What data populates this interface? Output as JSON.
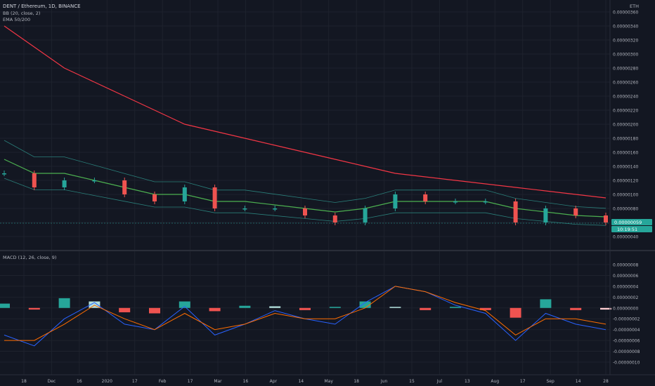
{
  "header": {
    "symbol": "DENT / Ethereum, 1D, BINANCE",
    "indicator_bb": "BB (20, close, 2)",
    "indicator_ema": "EMA 50/200",
    "currency": "ETH",
    "macd_label": "MACD (12, 26, close, 9)"
  },
  "price_badge": {
    "value": "0.00000059",
    "countdown": "10:19:51"
  },
  "colors": {
    "background": "#131722",
    "grid": "#1e222d",
    "up": "#26a69a",
    "down": "#ef5350",
    "ema50": "#4caf50",
    "ema200": "#f23645",
    "bb_band": "#2a7f7a",
    "bb_basis": "#c2185b",
    "macd_line": "#2962ff",
    "signal_line": "#ff6d00",
    "hist_up_strong": "#26a69a",
    "hist_up_weak": "#b2dfdb",
    "hist_down_strong": "#ef5350",
    "hist_down_weak": "#ffcdd2",
    "badge": "#26a69a"
  },
  "time_axis": [
    "18",
    "Dec",
    "16",
    "2020",
    "17",
    "Feb",
    "17",
    "Mar",
    "16",
    "Apr",
    "14",
    "May",
    "18",
    "Jun",
    "15",
    "Jul",
    "13",
    "Aug",
    "17",
    "Sep",
    "14",
    "28"
  ],
  "chart_data": [
    {
      "type": "line",
      "title": "",
      "y_ticks": [
        "0.00000360",
        "0.00000340",
        "0.00000320",
        "0.00000300",
        "0.00000280",
        "0.00000260",
        "0.00000240",
        "0.00000220",
        "0.00000200",
        "0.00000180",
        "0.00000160",
        "0.00000140",
        "0.00000120",
        "0.00000100",
        "0.00000080",
        "0.00000060",
        "0.00000040"
      ],
      "ylim": [
        4e-07,
        3.6e-06
      ],
      "x": [
        "18",
        "Dec",
        "16",
        "2020",
        "17",
        "Feb",
        "17",
        "Mar",
        "16",
        "Apr",
        "14",
        "May",
        "18",
        "Jun",
        "15",
        "Jul",
        "13",
        "Aug",
        "17",
        "Sep",
        "14"
      ],
      "close": [
        1.3e-06,
        1.1e-06,
        1.2e-06,
        1.2e-06,
        1e-06,
        9e-07,
        1.1e-06,
        8e-07,
        8e-07,
        8e-07,
        7e-07,
        6e-07,
        8e-07,
        1e-06,
        9e-07,
        9e-07,
        9e-07,
        6e-07,
        8e-07,
        7e-07,
        6e-07
      ],
      "series": [
        {
          "values": [
            1.5e-06,
            1.3e-06,
            1.3e-06,
            1.2e-06,
            1.1e-06,
            1e-06,
            1e-06,
            9e-07,
            9e-07,
            8.5e-07,
            8e-07,
            7.5e-07,
            8e-07,
            9e-07,
            9e-07,
            9e-07,
            9e-07,
            8e-07,
            7.5e-07,
            7e-07,
            6.8e-07
          ]
        },
        {
          "values": [
            3.4e-06,
            3.1e-06,
            2.8e-06,
            2.6e-06,
            2.4e-06,
            2.2e-06,
            2e-06,
            1.9e-06,
            1.8e-06,
            1.7e-06,
            1.6e-06,
            1.5e-06,
            1.4e-06,
            1.3e-06,
            1.25e-06,
            1.2e-06,
            1.15e-06,
            1.1e-06,
            1.05e-06,
            1e-06,
            9.5e-07
          ]
        }
      ]
    },
    {
      "type": "bar",
      "title": "",
      "y_ticks": [
        "0.00000008",
        "0.00000006",
        "0.00000004",
        "0.00000002",
        "0.00000000",
        "-0.00000002",
        "-0.00000004",
        "-0.00000006",
        "-0.00000008",
        "-0.00000010"
      ],
      "ylim": [
        -1e-07,
        8e-08
      ],
      "x": [
        "18",
        "Dec",
        "16",
        "2020",
        "17",
        "Feb",
        "17",
        "Mar",
        "16",
        "Apr",
        "14",
        "May",
        "18",
        "Jun",
        "15",
        "Jul",
        "13",
        "Aug",
        "17",
        "Sep",
        "14"
      ],
      "histogram": [
        8e-09,
        -3e-09,
        1.8e-08,
        1.2e-08,
        -8e-09,
        -1e-08,
        1.2e-08,
        -6e-09,
        4e-09,
        3e-09,
        -4e-09,
        2e-09,
        1.2e-08,
        2e-09,
        -4e-09,
        2e-09,
        -4e-09,
        -1.8e-08,
        1.6e-08,
        -4e-09,
        -3e-09
      ],
      "series": [
        {
          "values": [
            -5e-08,
            -7e-08,
            -2e-08,
            1e-08,
            -3e-08,
            -4e-08,
            3e-09,
            -5e-08,
            -3e-08,
            -5e-09,
            -2e-08,
            -3e-08,
            1e-08,
            4e-08,
            3e-08,
            5e-09,
            -1e-08,
            -6e-08,
            -1e-08,
            -3e-08,
            -4e-08
          ]
        },
        {
          "values": [
            -6e-08,
            -6e-08,
            -3e-08,
            5e-09,
            -2e-08,
            -4e-08,
            -1e-08,
            -4e-08,
            -3e-08,
            -1e-08,
            -2e-08,
            -2e-08,
            0.0,
            4e-08,
            3e-08,
            1e-08,
            -5e-09,
            -5e-08,
            -2e-08,
            -2e-08,
            -3e-08
          ]
        }
      ]
    }
  ]
}
